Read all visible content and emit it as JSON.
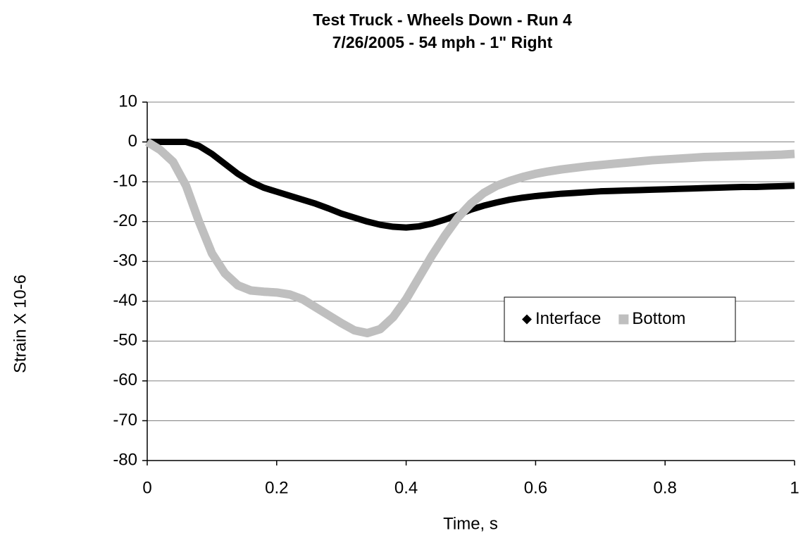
{
  "chart_data": {
    "type": "line",
    "title": "Test Truck - Wheels Down - Run 4",
    "subtitle": "7/26/2005 - 54 mph - 1\" Right",
    "xlabel": "Time, s",
    "ylabel": "Strain X 10-6",
    "x": [
      0,
      0.02,
      0.04,
      0.06,
      0.08,
      0.1,
      0.12,
      0.14,
      0.16,
      0.18,
      0.2,
      0.22,
      0.24,
      0.26,
      0.28,
      0.3,
      0.32,
      0.34,
      0.36,
      0.38,
      0.4,
      0.42,
      0.44,
      0.46,
      0.48,
      0.5,
      0.52,
      0.54,
      0.56,
      0.58,
      0.6,
      0.62,
      0.64,
      0.66,
      0.68,
      0.7,
      0.72,
      0.74,
      0.76,
      0.78,
      0.8,
      0.82,
      0.84,
      0.86,
      0.88,
      0.9,
      0.92,
      0.94,
      0.96,
      0.98,
      1
    ],
    "series": [
      {
        "name": "Interface",
        "color": "#000000",
        "marker": "diamond",
        "values": [
          0,
          0,
          0,
          0,
          -1,
          -3,
          -5.5,
          -8,
          -10,
          -11.5,
          -12.5,
          -13.5,
          -14.5,
          -15.5,
          -16.7,
          -18,
          -19,
          -20,
          -20.8,
          -21.3,
          -21.5,
          -21.2,
          -20.5,
          -19.5,
          -18.3,
          -17,
          -16,
          -15.2,
          -14.5,
          -14,
          -13.6,
          -13.3,
          -13,
          -12.8,
          -12.6,
          -12.4,
          -12.3,
          -12.2,
          -12.1,
          -12,
          -11.9,
          -11.8,
          -11.7,
          -11.6,
          -11.5,
          -11.4,
          -11.3,
          -11.3,
          -11.2,
          -11.1,
          -11
        ]
      },
      {
        "name": "Bottom",
        "color": "#bfbfbf",
        "marker": "square",
        "values": [
          0,
          -2,
          -5,
          -11,
          -20,
          -28,
          -33,
          -36,
          -37.3,
          -37.6,
          -37.8,
          -38.3,
          -39.5,
          -41.5,
          -43.5,
          -45.5,
          -47.3,
          -48,
          -47,
          -44,
          -39.5,
          -34,
          -28.5,
          -23.5,
          -19,
          -15.5,
          -12.8,
          -11,
          -9.8,
          -8.8,
          -8,
          -7.4,
          -6.9,
          -6.5,
          -6.1,
          -5.8,
          -5.5,
          -5.2,
          -4.9,
          -4.6,
          -4.4,
          -4.2,
          -4,
          -3.8,
          -3.7,
          -3.6,
          -3.5,
          -3.4,
          -3.3,
          -3.2,
          -3
        ]
      }
    ],
    "xlim": [
      0,
      1
    ],
    "xticks": [
      0,
      0.2,
      0.4,
      0.6,
      0.8,
      1
    ],
    "ylim": [
      -80,
      10
    ],
    "yticks": [
      10,
      0,
      -10,
      -20,
      -30,
      -40,
      -50,
      -60,
      -70,
      -80
    ],
    "grid": true,
    "legend": "right"
  }
}
